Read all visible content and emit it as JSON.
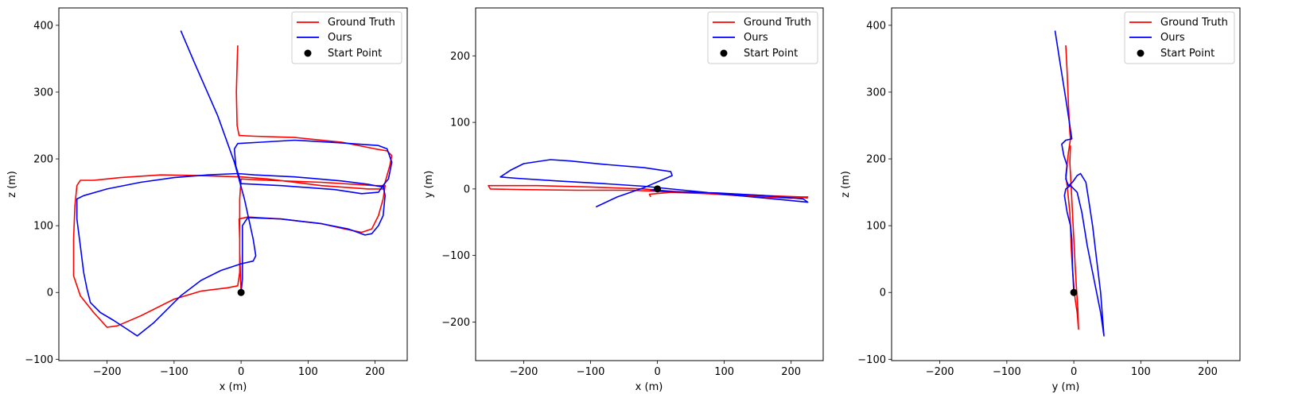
{
  "legend": {
    "ground_truth": "Ground Truth",
    "ours": "Ours",
    "start_point": "Start Point"
  },
  "colors": {
    "ground_truth": "#ff0000",
    "ours": "#0000ff",
    "start_point": "#000000"
  },
  "chart_data": [
    {
      "type": "line",
      "xlabel": "x (m)",
      "ylabel": "z (m)",
      "xlim": [
        -272,
        248
      ],
      "ylim": [
        -102,
        426
      ],
      "xticks": [
        -200,
        -100,
        0,
        100,
        200
      ],
      "yticks": [
        -100,
        0,
        100,
        200,
        300,
        400
      ],
      "legend_position": "top-right",
      "series": [
        {
          "name": "Ground Truth",
          "points": [
            [
              -5,
              370
            ],
            [
              -6,
              340
            ],
            [
              -7,
              300
            ],
            [
              -6,
              250
            ],
            [
              -3,
              235
            ],
            [
              20,
              234
            ],
            [
              80,
              232
            ],
            [
              150,
              225
            ],
            [
              200,
              215
            ],
            [
              218,
              212
            ],
            [
              225,
              205
            ],
            [
              222,
              190
            ],
            [
              215,
              165
            ],
            [
              212,
              155
            ],
            [
              190,
              155
            ],
            [
              120,
              160
            ],
            [
              40,
              170
            ],
            [
              0,
              173
            ],
            [
              -60,
              175
            ],
            [
              -120,
              176
            ],
            [
              -180,
              172
            ],
            [
              -220,
              168
            ],
            [
              -240,
              168
            ],
            [
              -245,
              160
            ],
            [
              -248,
              130
            ],
            [
              -250,
              80
            ],
            [
              -250,
              25
            ],
            [
              -240,
              -5
            ],
            [
              -220,
              -30
            ],
            [
              -200,
              -52
            ],
            [
              -185,
              -50
            ],
            [
              -150,
              -35
            ],
            [
              -100,
              -10
            ],
            [
              -60,
              2
            ],
            [
              -20,
              7
            ],
            [
              -5,
              10
            ],
            [
              -2,
              30
            ],
            [
              -2,
              80
            ],
            [
              -3,
              110
            ],
            [
              10,
              113
            ],
            [
              60,
              110
            ],
            [
              120,
              103
            ],
            [
              155,
              95
            ],
            [
              180,
              90
            ],
            [
              195,
              95
            ],
            [
              205,
              115
            ],
            [
              212,
              140
            ],
            [
              215,
              160
            ],
            [
              200,
              160
            ],
            [
              120,
              165
            ],
            [
              40,
              168
            ],
            [
              0,
              170
            ],
            [
              -2,
              140
            ],
            [
              -2,
              60
            ],
            [
              0,
              0
            ]
          ]
        },
        {
          "name": "Ours",
          "points": [
            [
              -90,
              392
            ],
            [
              -70,
              345
            ],
            [
              -35,
              265
            ],
            [
              -10,
              195
            ],
            [
              5,
              140
            ],
            [
              18,
              80
            ],
            [
              22,
              55
            ],
            [
              18,
              47
            ],
            [
              0,
              43
            ],
            [
              -30,
              33
            ],
            [
              -60,
              18
            ],
            [
              -90,
              -5
            ],
            [
              -130,
              -45
            ],
            [
              -155,
              -65
            ],
            [
              -170,
              -55
            ],
            [
              -190,
              -42
            ],
            [
              -210,
              -30
            ],
            [
              -225,
              -15
            ],
            [
              -230,
              5
            ],
            [
              -235,
              30
            ],
            [
              -240,
              70
            ],
            [
              -245,
              110
            ],
            [
              -245,
              140
            ],
            [
              -235,
              145
            ],
            [
              -200,
              155
            ],
            [
              -150,
              165
            ],
            [
              -100,
              172
            ],
            [
              -50,
              176
            ],
            [
              -5,
              178
            ],
            [
              20,
              176
            ],
            [
              80,
              173
            ],
            [
              150,
              167
            ],
            [
              190,
              162
            ],
            [
              210,
              158
            ],
            [
              220,
              170
            ],
            [
              225,
              195
            ],
            [
              218,
              215
            ],
            [
              205,
              220
            ],
            [
              150,
              224
            ],
            [
              80,
              228
            ],
            [
              30,
              225
            ],
            [
              -5,
              223
            ],
            [
              -10,
              215
            ],
            [
              -8,
              190
            ],
            [
              0,
              163
            ],
            [
              60,
              160
            ],
            [
              140,
              154
            ],
            [
              180,
              148
            ],
            [
              205,
              150
            ],
            [
              212,
              160
            ],
            [
              215,
              145
            ],
            [
              212,
              115
            ],
            [
              205,
              100
            ],
            [
              195,
              88
            ],
            [
              185,
              86
            ],
            [
              160,
              95
            ],
            [
              120,
              103
            ],
            [
              60,
              110
            ],
            [
              10,
              112
            ],
            [
              2,
              100
            ],
            [
              2,
              60
            ],
            [
              2,
              20
            ],
            [
              0,
              0
            ]
          ]
        }
      ],
      "start_point": [
        0,
        0
      ]
    },
    {
      "type": "line",
      "xlabel": "x (m)",
      "ylabel": "y (m)",
      "xlim": [
        -272,
        248
      ],
      "ylim": [
        -258,
        272
      ],
      "xticks": [
        -200,
        -100,
        0,
        100,
        200
      ],
      "yticks": [
        -200,
        -100,
        0,
        100,
        200
      ],
      "legend_position": "top-right",
      "series": [
        {
          "name": "Ground Truth",
          "points": [
            [
              -10,
              -12
            ],
            [
              -12,
              -8
            ],
            [
              20,
              -5
            ],
            [
              100,
              -8
            ],
            [
              180,
              -12
            ],
            [
              225,
              -12
            ],
            [
              200,
              -14
            ],
            [
              120,
              -10
            ],
            [
              40,
              -5
            ],
            [
              -20,
              0
            ],
            [
              -100,
              3
            ],
            [
              -180,
              5
            ],
            [
              -230,
              5
            ],
            [
              -253,
              5
            ],
            [
              -250,
              0
            ],
            [
              -200,
              -1
            ],
            [
              -120,
              -2
            ],
            [
              -40,
              -2
            ],
            [
              10,
              -4
            ],
            [
              80,
              -6
            ],
            [
              160,
              -10
            ],
            [
              215,
              -12
            ],
            [
              225,
              -14
            ]
          ]
        },
        {
          "name": "Ours",
          "points": [
            [
              -92,
              -27
            ],
            [
              -60,
              -12
            ],
            [
              -20,
              2
            ],
            [
              22,
              20
            ],
            [
              20,
              26
            ],
            [
              -20,
              32
            ],
            [
              -80,
              37
            ],
            [
              -130,
              42
            ],
            [
              -160,
              44
            ],
            [
              -200,
              38
            ],
            [
              -220,
              28
            ],
            [
              -235,
              18
            ],
            [
              -210,
              16
            ],
            [
              -150,
              12
            ],
            [
              -80,
              8
            ],
            [
              -20,
              4
            ],
            [
              40,
              -2
            ],
            [
              120,
              -10
            ],
            [
              185,
              -16
            ],
            [
              225,
              -20
            ],
            [
              218,
              -15
            ],
            [
              160,
              -10
            ],
            [
              90,
              -6
            ],
            [
              20,
              -4
            ],
            [
              -10,
              -2
            ],
            [
              0,
              0
            ]
          ]
        }
      ],
      "start_point": [
        0,
        0
      ]
    },
    {
      "type": "line",
      "xlabel": "y (m)",
      "ylabel": "z (m)",
      "xlim": [
        -272,
        248
      ],
      "ylim": [
        -102,
        426
      ],
      "xticks": [
        -200,
        -100,
        0,
        100,
        200
      ],
      "yticks": [
        -100,
        0,
        100,
        200,
        300,
        400
      ],
      "legend_position": "top-right",
      "series": [
        {
          "name": "Ground Truth",
          "points": [
            [
              -12,
              370
            ],
            [
              -10,
              330
            ],
            [
              -8,
              280
            ],
            [
              -6,
              240
            ],
            [
              -5,
              230
            ],
            [
              -8,
              210
            ],
            [
              -12,
              175
            ],
            [
              -10,
              160
            ],
            [
              -8,
              140
            ],
            [
              -6,
              120
            ],
            [
              -5,
              100
            ],
            [
              -4,
              70
            ],
            [
              -2,
              35
            ],
            [
              0,
              10
            ],
            [
              2,
              -10
            ],
            [
              5,
              -30
            ],
            [
              7,
              -55
            ],
            [
              6,
              -25
            ],
            [
              4,
              5
            ],
            [
              2,
              40
            ],
            [
              0,
              80
            ],
            [
              -2,
              120
            ],
            [
              -4,
              160
            ],
            [
              -6,
              195
            ],
            [
              -5,
              220
            ]
          ]
        },
        {
          "name": "Ours",
          "points": [
            [
              -28,
              392
            ],
            [
              -20,
              340
            ],
            [
              -12,
              290
            ],
            [
              -6,
              250
            ],
            [
              -3,
              230
            ],
            [
              -12,
              228
            ],
            [
              -18,
              222
            ],
            [
              -15,
              205
            ],
            [
              -10,
              190
            ],
            [
              -12,
              170
            ],
            [
              -8,
              160
            ],
            [
              -2,
              165
            ],
            [
              5,
              175
            ],
            [
              10,
              178
            ],
            [
              18,
              165
            ],
            [
              22,
              140
            ],
            [
              28,
              100
            ],
            [
              34,
              50
            ],
            [
              40,
              0
            ],
            [
              45,
              -65
            ],
            [
              40,
              -30
            ],
            [
              30,
              20
            ],
            [
              20,
              70
            ],
            [
              12,
              120
            ],
            [
              5,
              150
            ],
            [
              -5,
              160
            ],
            [
              -12,
              155
            ],
            [
              -14,
              145
            ],
            [
              -10,
              120
            ],
            [
              -5,
              100
            ],
            [
              -3,
              80
            ],
            [
              -2,
              40
            ],
            [
              0,
              0
            ]
          ]
        }
      ],
      "start_point": [
        0,
        0
      ]
    }
  ]
}
